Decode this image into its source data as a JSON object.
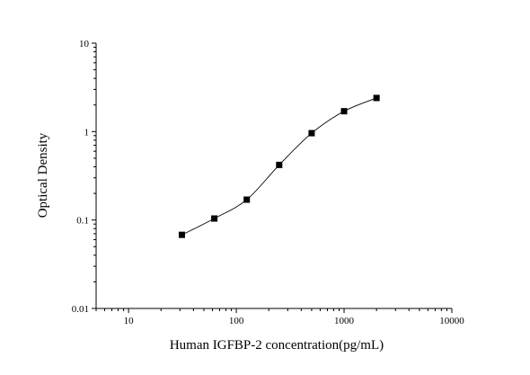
{
  "chart_data": {
    "type": "scatter",
    "title": "",
    "xlabel": "Human IGFBP-2 concentration(pg/mL)",
    "ylabel": "Optical Density",
    "xscale": "log",
    "yscale": "log",
    "xlim": [
      5,
      10000
    ],
    "ylim": [
      0.01,
      10
    ],
    "xticks": [
      10,
      100,
      1000,
      10000
    ],
    "xtick_labels": [
      "10",
      "100",
      "1000",
      "10000"
    ],
    "yticks": [
      0.01,
      0.1,
      1,
      10
    ],
    "ytick_labels": [
      "0.01",
      "0.1",
      "1",
      "10"
    ],
    "grid": false,
    "legend": "none",
    "marker": "square",
    "fit_line": "smooth curve through points",
    "color": "#000000",
    "series": [
      {
        "x": [
          31.25,
          62.5,
          125,
          250,
          500,
          1000,
          2000
        ],
        "y": [
          0.068,
          0.104,
          0.17,
          0.42,
          0.96,
          1.7,
          2.4
        ]
      }
    ]
  }
}
